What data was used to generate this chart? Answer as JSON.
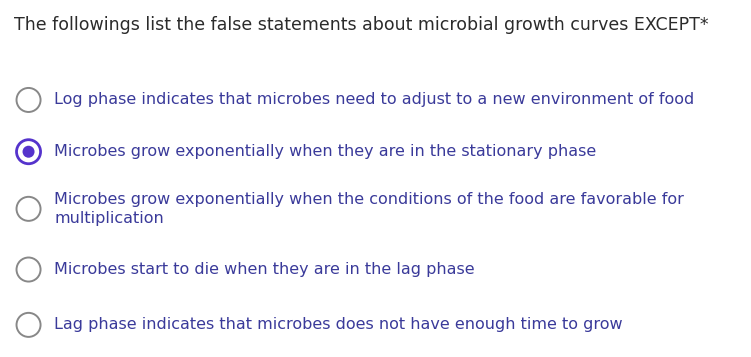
{
  "background_color": "#ffffff",
  "title": "The followings list the false statements about microbial growth curves EXCEPT*",
  "title_color": "#2b2b2b",
  "title_fontsize": 12.5,
  "title_fontweight": "normal",
  "title_fontfamily": "DejaVu Sans",
  "options": [
    {
      "text": "Log phase indicates that microbes need to adjust to a new environment of food",
      "selected": false,
      "lines": [
        "Log phase indicates that microbes need to adjust to a new environment of food"
      ]
    },
    {
      "text": "Microbes grow exponentially when they are in the stationary phase",
      "selected": true,
      "lines": [
        "Microbes grow exponentially when they are in the stationary phase"
      ]
    },
    {
      "text": "Microbes grow exponentially when the conditions of the food are favorable for\nmultiplication",
      "selected": false,
      "lines": [
        "Microbes grow exponentially when the conditions of the food are favorable for",
        "multiplication"
      ]
    },
    {
      "text": "Microbes start to die when they are in the lag phase",
      "selected": false,
      "lines": [
        "Microbes start to die when they are in the lag phase"
      ]
    },
    {
      "text": "Lag phase indicates that microbes does not have enough time to grow",
      "selected": false,
      "lines": [
        "Lag phase indicates that microbes does not have enough time to grow"
      ]
    }
  ],
  "option_text_color": "#3a3a9a",
  "option_fontsize": 11.5,
  "circle_unselected_edge": "#888888",
  "circle_selected_edge": "#5533cc",
  "circle_selected_dot": "#5533cc",
  "figsize": [
    7.51,
    3.57
  ],
  "dpi": 100
}
